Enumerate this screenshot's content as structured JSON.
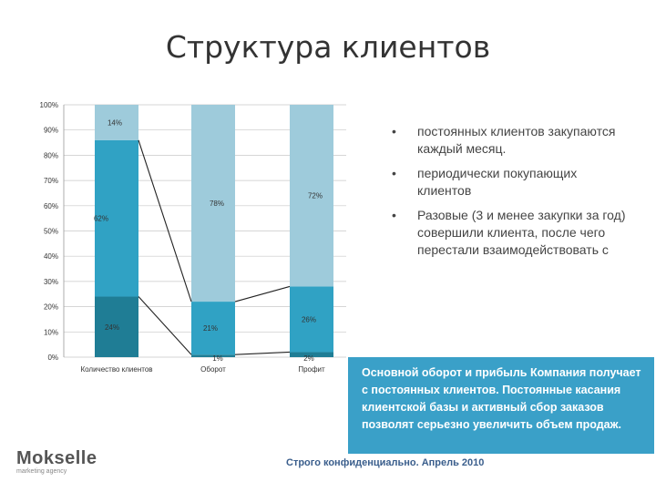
{
  "title": "Структура клиентов",
  "bullets": [
    "постоянных клиентов закупаются каждый месяц.",
    "периодически покупающих клиентов",
    "Разовые (3 и менее закупки за год) совершили клиента, после чего перестали взаимодействовать с"
  ],
  "bullet_symbol": "•",
  "callout_text": "Основной оборот и прибыль Компания получает с постоянных клиентов. Постоянные касания клиентской базы и активный сбор заказов позволят серьезно увеличить объем продаж.",
  "footer": "Строго конфиденциально. Апрель 2010",
  "logo": {
    "name": "Mokselle",
    "tagline": "marketing agency"
  },
  "colors": {
    "dark": "#1f7d95",
    "mid": "#30a2c4",
    "light": "#9ecbdb",
    "callout": "#3aa0c8"
  },
  "chart_data": {
    "type": "bar",
    "stacked": true,
    "ylim": [
      0,
      100
    ],
    "yticks": [
      "0%",
      "10%",
      "20%",
      "30%",
      "40%",
      "50%",
      "60%",
      "70%",
      "80%",
      "90%",
      "100%"
    ],
    "categories": [
      "Количество клиентов",
      "Оборот",
      "Профит"
    ],
    "series": [
      {
        "values": [
          24,
          1,
          2
        ],
        "labels": [
          "24%",
          "1%",
          "2%"
        ],
        "color": "#1f7d95"
      },
      {
        "values": [
          62,
          21,
          26
        ],
        "labels": [
          "62%",
          "21%",
          "26%"
        ],
        "color": "#30a2c4"
      },
      {
        "values": [
          14,
          78,
          72
        ],
        "labels": [
          "14%",
          "78%",
          "72%"
        ],
        "color": "#9ecbdb"
      }
    ],
    "grid": true,
    "legend": "none"
  }
}
